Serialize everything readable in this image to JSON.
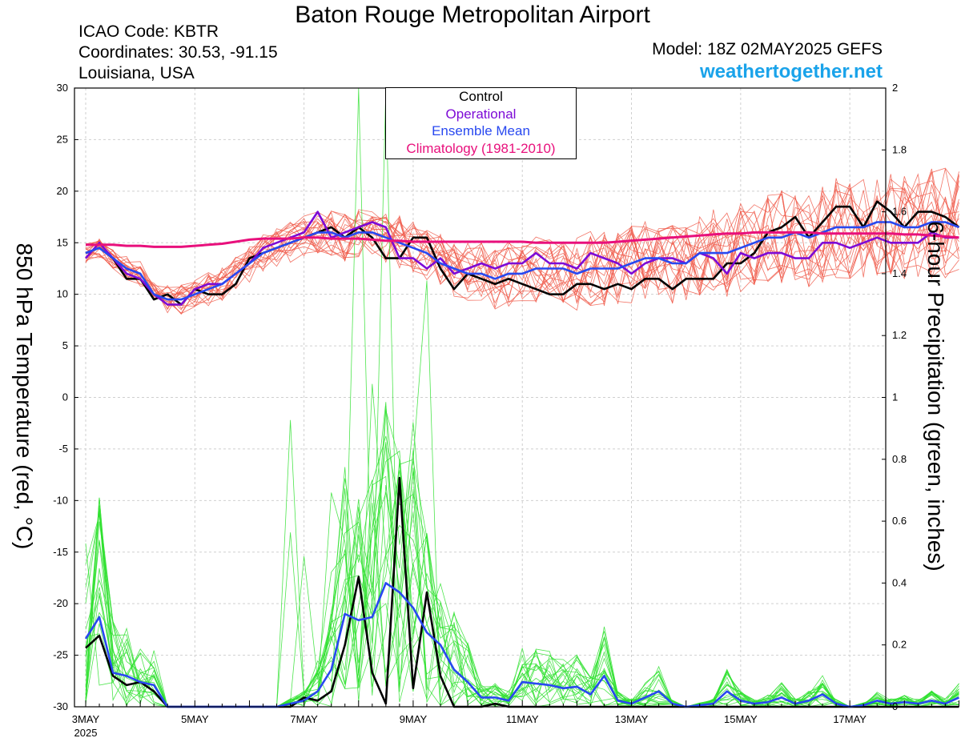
{
  "header": {
    "title": "Baton Rouge Metropolitan Airport",
    "icao": "ICAO Code: KBTR",
    "coords": "Coordinates: 30.53, -91.15",
    "region": "Louisiana, USA",
    "model": "Model: 18Z 02MAY2025 GEFS",
    "site": "weathertogether.net"
  },
  "legend": {
    "control": "Control",
    "operational": "Operational",
    "mean": "Ensemble Mean",
    "climo": "Climatology (1981-2010)"
  },
  "axes": {
    "left_label": "850 hPa Temperature (red, °C)",
    "right_label": "6-hour Precipitation (green, inches)"
  },
  "colors": {
    "member_temp": "#f05a4a",
    "member_precip": "#2ee02e",
    "control": "#000000",
    "operational": "#7d0ad6",
    "mean": "#2848f0",
    "climo": "#e8107c",
    "site": "#1aa3ea"
  },
  "chart_data": {
    "type": "line",
    "x_unit": "forecast step (6-hour)",
    "x_range": [
      0,
      64
    ],
    "ylim_left": [
      -30,
      30
    ],
    "ylim_right": [
      0,
      2
    ],
    "y_ticks_left": [
      "30",
      "25",
      "20",
      "15",
      "10",
      "5",
      "0",
      "-5",
      "-10",
      "-15",
      "-20",
      "-25",
      "-30"
    ],
    "y_ticks_right": [
      "2",
      "1.8",
      "1.6",
      "1.4",
      "1.2",
      "1",
      "0.8",
      "0.6",
      "0.4",
      "0.2",
      "0"
    ],
    "x_ticks": [
      {
        "step": 0,
        "label": "3MAY",
        "sub": "2025"
      },
      {
        "step": 8,
        "label": "5MAY",
        "sub": ""
      },
      {
        "step": 16,
        "label": "7MAY",
        "sub": ""
      },
      {
        "step": 24,
        "label": "9MAY",
        "sub": ""
      },
      {
        "step": 32,
        "label": "11MAY",
        "sub": ""
      },
      {
        "step": 40,
        "label": "13MAY",
        "sub": ""
      },
      {
        "step": 48,
        "label": "15MAY",
        "sub": ""
      },
      {
        "step": 56,
        "label": "17MAY",
        "sub": ""
      }
    ],
    "series": [
      {
        "name": "Control",
        "axis": "left",
        "values": [
          14,
          14.5,
          13.5,
          11.5,
          11.5,
          9.5,
          10,
          9,
          10.5,
          10,
          10,
          11,
          13.5,
          14,
          14.5,
          15,
          15.5,
          16,
          16.5,
          15.5,
          16.5,
          15.5,
          13.5,
          13.5,
          15.5,
          15.5,
          12.5,
          10.5,
          12,
          11.5,
          11,
          11.5,
          11,
          10.5,
          10,
          10,
          11,
          11,
          10.5,
          11,
          10.5,
          11.5,
          11.5,
          10.5,
          11.5,
          11.5,
          11.5,
          13,
          13,
          14,
          16,
          16.5,
          17.5,
          15.5,
          17,
          18.5,
          18.5,
          16.5,
          19,
          18,
          16.5,
          18,
          18,
          17.5,
          16.5
        ]
      },
      {
        "name": "Operational",
        "axis": "left",
        "values": [
          13.5,
          15,
          13.5,
          12,
          11.5,
          10,
          9,
          9,
          10.5,
          11,
          11,
          12,
          13,
          14.5,
          15,
          15.5,
          16,
          18,
          15.5,
          16,
          16.5,
          17,
          16.5,
          13.5,
          13.5,
          12.5,
          13.5,
          12,
          12.5,
          13,
          12.5,
          13,
          13,
          14,
          13,
          13,
          12.5,
          14,
          13.5,
          13,
          12,
          13,
          13.5,
          13.5,
          13,
          14,
          13.5,
          12,
          14,
          13.5,
          14,
          14,
          13.5,
          13.5,
          15,
          15,
          14.5,
          15,
          15.5,
          15,
          15,
          15,
          16,
          15.5,
          15.5
        ]
      },
      {
        "name": "Ensemble Mean",
        "axis": "left",
        "values": [
          14,
          14.5,
          13.5,
          12.5,
          12,
          10,
          9.5,
          9.5,
          10,
          10.5,
          11,
          12,
          13,
          14,
          14.5,
          15,
          15.5,
          16,
          16,
          15.5,
          16,
          16,
          15.5,
          15,
          14.5,
          14,
          13,
          12.5,
          12,
          12,
          11.5,
          12,
          12,
          12.5,
          12.5,
          12.5,
          12,
          12.5,
          12.5,
          12.5,
          13,
          13.5,
          13.5,
          13,
          13,
          14,
          14,
          14,
          14.5,
          15,
          15.5,
          15.5,
          16,
          15.5,
          16,
          16.5,
          16.5,
          16.5,
          17,
          17,
          16.5,
          16.5,
          17,
          17,
          16.5
        ]
      },
      {
        "name": "Climatology (1981-2010)",
        "axis": "left",
        "values": [
          14.8,
          14.8,
          14.8,
          14.7,
          14.7,
          14.6,
          14.6,
          14.6,
          14.7,
          14.8,
          14.9,
          15.1,
          15.3,
          15.4,
          15.4,
          15.4,
          15.5,
          15.5,
          15.4,
          15.4,
          15.4,
          15.3,
          15.2,
          15.2,
          15.1,
          15.1,
          15.1,
          15.1,
          15.1,
          15.1,
          15.1,
          15.1,
          15.1,
          15.0,
          15.0,
          15.0,
          15.0,
          15.0,
          15.0,
          15.1,
          15.2,
          15.3,
          15.4,
          15.5,
          15.6,
          15.7,
          15.8,
          15.9,
          15.9,
          16.0,
          16.0,
          16.0,
          16.0,
          16.0,
          15.9,
          15.9,
          15.9,
          15.9,
          15.9,
          15.9,
          15.8,
          15.8,
          15.7,
          15.6,
          15.5
        ]
      },
      {
        "name": "Control",
        "axis": "right",
        "values": [
          0.19,
          0.23,
          0.1,
          0.07,
          0.08,
          0.05,
          0,
          0,
          0,
          0,
          0,
          0,
          0,
          0,
          0,
          0,
          0.03,
          0.02,
          0.05,
          0.2,
          0.42,
          0.11,
          0.01,
          0.74,
          0.06,
          0.37,
          0.1,
          0,
          0,
          0,
          0.01,
          0,
          0,
          0,
          0,
          0,
          0,
          0,
          0,
          0,
          0,
          0,
          0,
          0,
          0,
          0,
          0,
          0,
          0,
          0,
          0,
          0,
          0,
          0,
          0,
          0,
          0,
          0,
          0,
          0,
          0,
          0,
          0,
          0,
          0
        ]
      },
      {
        "name": "Ensemble Mean",
        "axis": "right",
        "values": [
          0.22,
          0.29,
          0.11,
          0.1,
          0.08,
          0.07,
          0,
          0,
          0,
          0,
          0,
          0,
          0,
          0,
          0,
          0.01,
          0.02,
          0.05,
          0.12,
          0.3,
          0.28,
          0.29,
          0.4,
          0.37,
          0.32,
          0.24,
          0.2,
          0.12,
          0.08,
          0.03,
          0.03,
          0.02,
          0.08,
          0.075,
          0.07,
          0.06,
          0.065,
          0.04,
          0.1,
          0.02,
          0.01,
          0.03,
          0.05,
          0.01,
          0.0,
          0.005,
          0.01,
          0.05,
          0.02,
          0.01,
          0.015,
          0.03,
          0.01,
          0.02,
          0.04,
          0.01,
          0.0,
          0.005,
          0.02,
          0.01,
          0.015,
          0.01,
          0.02,
          0.01,
          0.03
        ]
      }
    ]
  }
}
